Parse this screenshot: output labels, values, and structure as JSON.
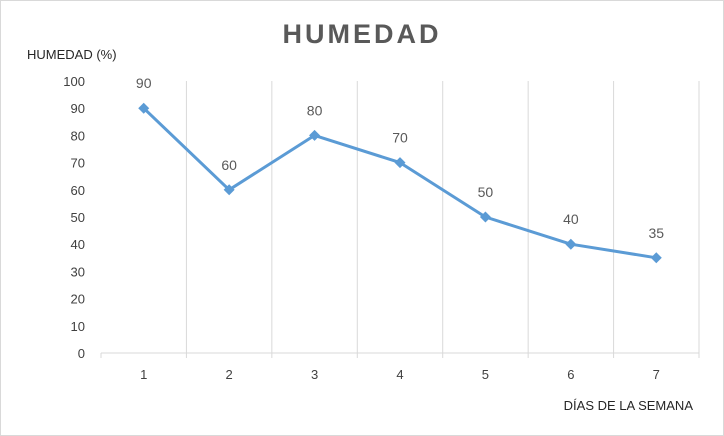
{
  "chart_data": {
    "type": "line",
    "title": "HUMEDAD",
    "ylabel": "HUMEDAD (%)",
    "xlabel": "DÍAS DE LA SEMANA",
    "categories": [
      "1",
      "2",
      "3",
      "4",
      "5",
      "6",
      "7"
    ],
    "series": [
      {
        "values": [
          90,
          60,
          80,
          70,
          50,
          40,
          35
        ]
      }
    ],
    "y_ticks": [
      "0",
      "10",
      "20",
      "30",
      "40",
      "50",
      "60",
      "70",
      "80",
      "90",
      "100"
    ],
    "ylim": [
      0,
      100
    ],
    "grid": "vertical",
    "data_labels": true,
    "legend": "none",
    "line_color": "#5b9bd5",
    "grid_color": "#d9d9d9"
  }
}
